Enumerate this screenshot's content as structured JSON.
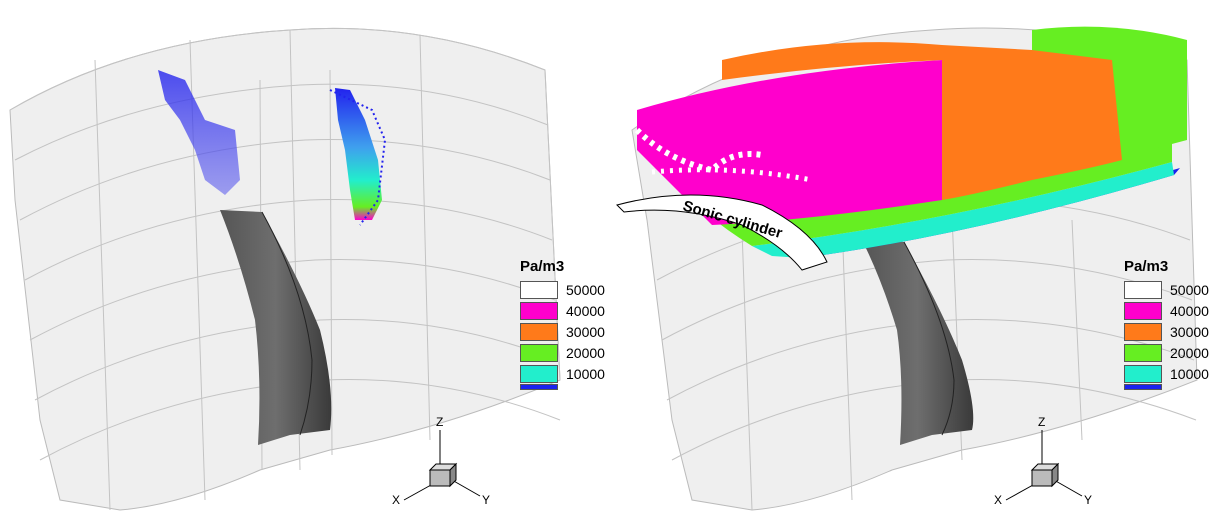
{
  "panels": [
    {
      "legend": {
        "title": "Pa/m3",
        "entries": [
          {
            "value": "50000",
            "color": "#ffffff"
          },
          {
            "value": "40000",
            "color": "#ff00cc"
          },
          {
            "value": "30000",
            "color": "#ff7a1a"
          },
          {
            "value": "20000",
            "color": "#66ee22"
          },
          {
            "value": "10000",
            "color": "#22eecc"
          },
          {
            "value": "",
            "color": "#1a22ee"
          }
        ]
      },
      "axes": {
        "x": "X",
        "y": "Y",
        "z": "Z"
      }
    },
    {
      "legend": {
        "title": "Pa/m3",
        "entries": [
          {
            "value": "50000",
            "color": "#ffffff"
          },
          {
            "value": "40000",
            "color": "#ff00cc"
          },
          {
            "value": "30000",
            "color": "#ff7a1a"
          },
          {
            "value": "20000",
            "color": "#66ee22"
          },
          {
            "value": "10000",
            "color": "#22eecc"
          },
          {
            "value": "",
            "color": "#1a22ee"
          }
        ]
      },
      "annotation": "Sonic cylinder",
      "axes": {
        "x": "X",
        "y": "Y",
        "z": "Z"
      }
    }
  ]
}
